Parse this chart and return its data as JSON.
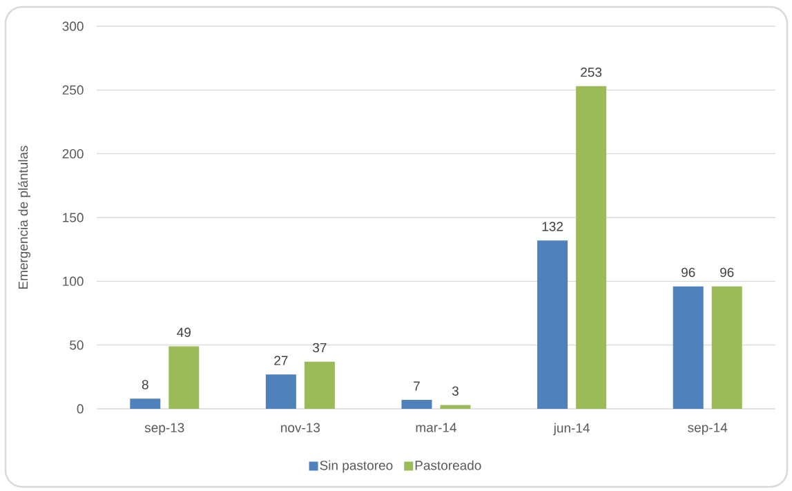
{
  "chart_data": {
    "type": "bar",
    "ylabel": "Emergencia de plántulas",
    "categories": [
      "sep-13",
      "nov-13",
      "mar-14",
      "jun-14",
      "sep-14"
    ],
    "series": [
      {
        "name": "Sin pastoreo",
        "color": "#4f81bd",
        "values": [
          8,
          27,
          7,
          132,
          96
        ]
      },
      {
        "name": "Pastoreado",
        "color": "#9bbb59",
        "values": [
          49,
          37,
          3,
          253,
          96
        ]
      }
    ],
    "ylim": [
      0,
      300
    ],
    "yticks": [
      0,
      50,
      100,
      150,
      200,
      250,
      300
    ],
    "grid": "y",
    "legend": "bottom",
    "data_labels": true
  }
}
